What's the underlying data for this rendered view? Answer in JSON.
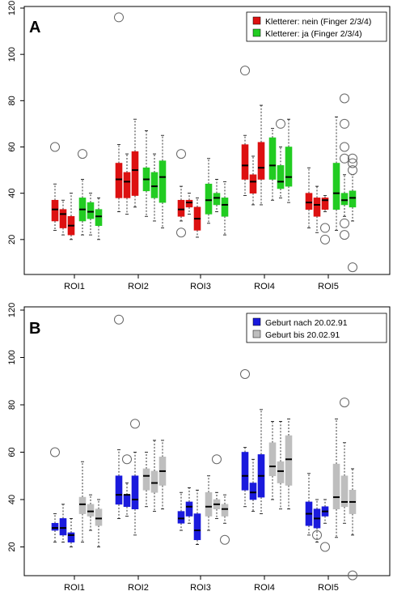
{
  "chart_data": [
    {
      "type": "box",
      "panel_label": "A",
      "categories": [
        "ROI1",
        "ROI2",
        "ROI3",
        "ROI4",
        "ROI5"
      ],
      "ylim": [
        0,
        120
      ],
      "yticks": [
        20,
        40,
        60,
        80,
        100,
        120
      ],
      "legend_position": "top-right",
      "series": [
        {
          "name": "Kletterer: nein (Finger 2/3/4)",
          "color": "#dd1111"
        },
        {
          "name": "Kletterer: ja (Finger 2/3/4)",
          "color": "#22cc22"
        }
      ],
      "groups": [
        {
          "category": "ROI1",
          "boxes": [
            {
              "series": 0,
              "wlo": 24,
              "q1": 28,
              "med": 33,
              "q3": 37,
              "whi": 44,
              "out": [
                60
              ]
            },
            {
              "series": 0,
              "wlo": 22,
              "q1": 25,
              "med": 31,
              "q3": 33,
              "whi": 37,
              "out": []
            },
            {
              "series": 0,
              "wlo": 20,
              "q1": 22,
              "med": 26,
              "q3": 30,
              "whi": 40,
              "out": []
            },
            {
              "series": 1,
              "wlo": 22,
              "q1": 28,
              "med": 33,
              "q3": 38,
              "whi": 46,
              "out": [
                57
              ]
            },
            {
              "series": 1,
              "wlo": 22,
              "q1": 29,
              "med": 32,
              "q3": 36,
              "whi": 40,
              "out": []
            },
            {
              "series": 1,
              "wlo": 20,
              "q1": 26,
              "med": 30,
              "q3": 33,
              "whi": 38,
              "out": []
            }
          ]
        },
        {
          "category": "ROI2",
          "boxes": [
            {
              "series": 0,
              "wlo": 32,
              "q1": 38,
              "med": 46,
              "q3": 53,
              "whi": 61,
              "out": [
                116
              ]
            },
            {
              "series": 0,
              "wlo": 31,
              "q1": 38,
              "med": 45,
              "q3": 49,
              "whi": 57,
              "out": []
            },
            {
              "series": 0,
              "wlo": 34,
              "q1": 39,
              "med": 50,
              "q3": 58,
              "whi": 72,
              "out": []
            },
            {
              "series": 1,
              "wlo": 30,
              "q1": 41,
              "med": 46,
              "q3": 51,
              "whi": 67,
              "out": []
            },
            {
              "series": 1,
              "wlo": 28,
              "q1": 38,
              "med": 43,
              "q3": 49,
              "whi": 57,
              "out": []
            },
            {
              "series": 1,
              "wlo": 25,
              "q1": 36,
              "med": 47,
              "q3": 54,
              "whi": 65,
              "out": []
            }
          ]
        },
        {
          "category": "ROI3",
          "boxes": [
            {
              "series": 0,
              "wlo": 28,
              "q1": 30,
              "med": 33,
              "q3": 37,
              "whi": 43,
              "out": [
                57,
                23
              ]
            },
            {
              "series": 0,
              "wlo": 31,
              "q1": 34,
              "med": 36,
              "q3": 37,
              "whi": 40,
              "out": []
            },
            {
              "series": 0,
              "wlo": 21,
              "q1": 24,
              "med": 29,
              "q3": 34,
              "whi": 38,
              "out": []
            },
            {
              "series": 1,
              "wlo": 27,
              "q1": 31,
              "med": 37,
              "q3": 44,
              "whi": 55,
              "out": []
            },
            {
              "series": 1,
              "wlo": 32,
              "q1": 35,
              "med": 38,
              "q3": 40,
              "whi": 46,
              "out": []
            },
            {
              "series": 1,
              "wlo": 22,
              "q1": 30,
              "med": 35,
              "q3": 38,
              "whi": 45,
              "out": []
            }
          ]
        },
        {
          "category": "ROI4",
          "boxes": [
            {
              "series": 0,
              "wlo": 39,
              "q1": 46,
              "med": 52,
              "q3": 61,
              "whi": 65,
              "out": [
                93
              ]
            },
            {
              "series": 0,
              "wlo": 35,
              "q1": 40,
              "med": 45,
              "q3": 48,
              "whi": 56,
              "out": []
            },
            {
              "series": 0,
              "wlo": 35,
              "q1": 46,
              "med": 51,
              "q3": 62,
              "whi": 78,
              "out": []
            },
            {
              "series": 1,
              "wlo": 37,
              "q1": 46,
              "med": 52,
              "q3": 64,
              "whi": 68,
              "out": []
            },
            {
              "series": 1,
              "wlo": 38,
              "q1": 42,
              "med": 45,
              "q3": 52,
              "whi": 60,
              "out": [
                70
              ]
            },
            {
              "series": 1,
              "wlo": 36,
              "q1": 43,
              "med": 47,
              "q3": 60,
              "whi": 72,
              "out": []
            }
          ]
        },
        {
          "category": "ROI5",
          "boxes": [
            {
              "series": 0,
              "wlo": 25,
              "q1": 33,
              "med": 36,
              "q3": 40,
              "whi": 51,
              "out": []
            },
            {
              "series": 0,
              "wlo": 23,
              "q1": 30,
              "med": 35,
              "q3": 38,
              "whi": 43,
              "out": []
            },
            {
              "series": 0,
              "wlo": 32,
              "q1": 33,
              "med": 37,
              "q3": 38,
              "whi": 39,
              "out": [
                25,
                20
              ]
            },
            {
              "series": 1,
              "wlo": 24,
              "q1": 33,
              "med": 40,
              "q3": 53,
              "whi": 73,
              "out": []
            },
            {
              "series": 1,
              "wlo": 30,
              "q1": 35,
              "med": 37,
              "q3": 40,
              "whi": 48,
              "out": [
                81,
                70,
                60,
                55,
                27,
                22
              ]
            },
            {
              "series": 1,
              "wlo": 28,
              "q1": 34,
              "med": 38,
              "q3": 41,
              "whi": 48,
              "out": [
                55,
                53,
                50,
                8
              ]
            }
          ]
        }
      ]
    },
    {
      "type": "box",
      "panel_label": "B",
      "categories": [
        "ROI1",
        "ROI2",
        "ROI3",
        "ROI4",
        "ROI5"
      ],
      "ylim": [
        0,
        120
      ],
      "yticks": [
        20,
        40,
        60,
        80,
        100,
        120
      ],
      "legend_position": "top-right",
      "series": [
        {
          "name": "Geburt nach 20.02.91",
          "color": "#1a1add"
        },
        {
          "name": "Geburt bis 20.02.91",
          "color": "#bebebe"
        }
      ],
      "groups": [
        {
          "category": "ROI1",
          "boxes": [
            {
              "series": 0,
              "wlo": 22,
              "q1": 27,
              "med": 28,
              "q3": 30,
              "whi": 34,
              "out": [
                60
              ]
            },
            {
              "series": 0,
              "wlo": 22,
              "q1": 25,
              "med": 28,
              "q3": 32,
              "whi": 38,
              "out": []
            },
            {
              "series": 0,
              "wlo": 20,
              "q1": 22,
              "med": 25,
              "q3": 26,
              "whi": 32,
              "out": []
            },
            {
              "series": 1,
              "wlo": 22,
              "q1": 34,
              "med": 38,
              "q3": 41,
              "whi": 56,
              "out": []
            },
            {
              "series": 1,
              "wlo": 27,
              "q1": 33,
              "med": 35,
              "q3": 38,
              "whi": 42,
              "out": []
            },
            {
              "series": 1,
              "wlo": 20,
              "q1": 29,
              "med": 32,
              "q3": 36,
              "whi": 40,
              "out": []
            }
          ]
        },
        {
          "category": "ROI2",
          "boxes": [
            {
              "series": 0,
              "wlo": 32,
              "q1": 38,
              "med": 42,
              "q3": 50,
              "whi": 61,
              "out": [
                116
              ]
            },
            {
              "series": 0,
              "wlo": 33,
              "q1": 37,
              "med": 42,
              "q3": 42,
              "whi": 47,
              "out": [
                57
              ]
            },
            {
              "series": 0,
              "wlo": 25,
              "q1": 36,
              "med": 40,
              "q3": 50,
              "whi": 60,
              "out": [
                72
              ]
            },
            {
              "series": 1,
              "wlo": 37,
              "q1": 44,
              "med": 50,
              "q3": 53,
              "whi": 60,
              "out": []
            },
            {
              "series": 1,
              "wlo": 35,
              "q1": 43,
              "med": 47,
              "q3": 52,
              "whi": 65,
              "out": []
            },
            {
              "series": 1,
              "wlo": 36,
              "q1": 46,
              "med": 52,
              "q3": 58,
              "whi": 65,
              "out": []
            }
          ]
        },
        {
          "category": "ROI3",
          "boxes": [
            {
              "series": 0,
              "wlo": 27,
              "q1": 30,
              "med": 32,
              "q3": 35,
              "whi": 43,
              "out": []
            },
            {
              "series": 0,
              "wlo": 30,
              "q1": 33,
              "med": 37,
              "q3": 39,
              "whi": 45,
              "out": []
            },
            {
              "series": 0,
              "wlo": 21,
              "q1": 23,
              "med": 27,
              "q3": 34,
              "whi": 44,
              "out": []
            },
            {
              "series": 1,
              "wlo": 27,
              "q1": 33,
              "med": 37,
              "q3": 43,
              "whi": 50,
              "out": []
            },
            {
              "series": 1,
              "wlo": 32,
              "q1": 36,
              "med": 38,
              "q3": 40,
              "whi": 43,
              "out": [
                57
              ]
            },
            {
              "series": 1,
              "wlo": 30,
              "q1": 33,
              "med": 36,
              "q3": 38,
              "whi": 42,
              "out": [
                23
              ]
            }
          ]
        },
        {
          "category": "ROI4",
          "boxes": [
            {
              "series": 0,
              "wlo": 37,
              "q1": 44,
              "med": 50,
              "q3": 60,
              "whi": 62,
              "out": [
                93
              ]
            },
            {
              "series": 0,
              "wlo": 35,
              "q1": 40,
              "med": 43,
              "q3": 47,
              "whi": 57,
              "out": []
            },
            {
              "series": 0,
              "wlo": 34,
              "q1": 41,
              "med": 50,
              "q3": 59,
              "whi": 78,
              "out": []
            },
            {
              "series": 1,
              "wlo": 40,
              "q1": 50,
              "med": 54,
              "q3": 64,
              "whi": 73,
              "out": []
            },
            {
              "series": 1,
              "wlo": 36,
              "q1": 47,
              "med": 52,
              "q3": 56,
              "whi": 73,
              "out": []
            },
            {
              "series": 1,
              "wlo": 36,
              "q1": 46,
              "med": 57,
              "q3": 67,
              "whi": 74,
              "out": []
            }
          ]
        },
        {
          "category": "ROI5",
          "boxes": [
            {
              "series": 0,
              "wlo": 25,
              "q1": 29,
              "med": 34,
              "q3": 39,
              "whi": 51,
              "out": []
            },
            {
              "series": 0,
              "wlo": 22,
              "q1": 28,
              "med": 32,
              "q3": 36,
              "whi": 40,
              "out": [
                25
              ]
            },
            {
              "series": 0,
              "wlo": 30,
              "q1": 33,
              "med": 35,
              "q3": 37,
              "whi": 40,
              "out": [
                20
              ]
            },
            {
              "series": 1,
              "wlo": 24,
              "q1": 36,
              "med": 41,
              "q3": 55,
              "whi": 74,
              "out": []
            },
            {
              "series": 1,
              "wlo": 30,
              "q1": 37,
              "med": 39,
              "q3": 50,
              "whi": 64,
              "out": [
                81
              ]
            },
            {
              "series": 1,
              "wlo": 25,
              "q1": 34,
              "med": 39,
              "q3": 44,
              "whi": 53,
              "out": [
                8
              ]
            }
          ]
        }
      ]
    }
  ]
}
